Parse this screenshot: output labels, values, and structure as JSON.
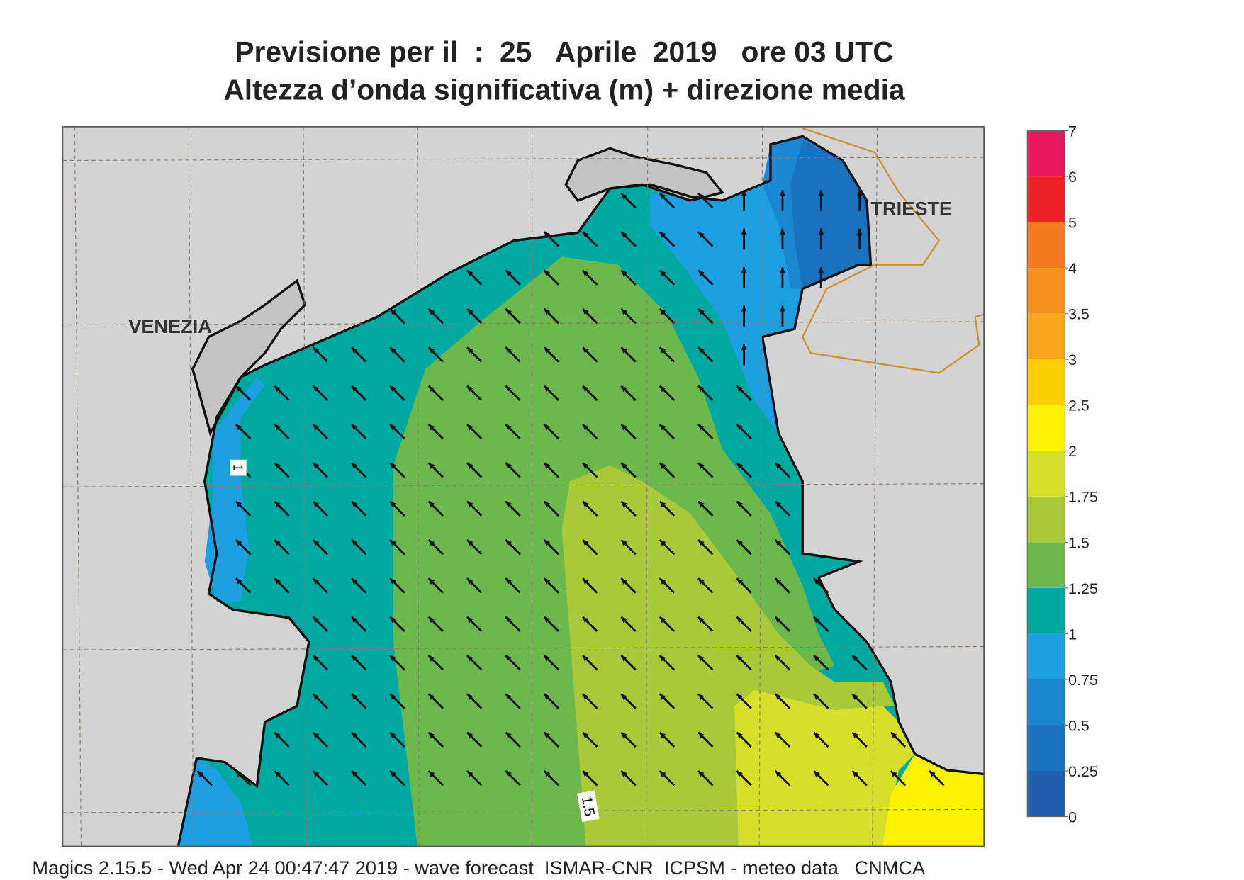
{
  "title": {
    "line1": "Previsione per il  :  25   Aprile  2019   ore 03 UTC",
    "line2": "Altezza d’onda significativa (m) + direzione media"
  },
  "map": {
    "place_labels": [
      "VENEZIA",
      "TRIESTE"
    ],
    "contour_labels": [
      "1",
      "1.5"
    ]
  },
  "colorbar": {
    "levels": [
      0,
      0.25,
      0.5,
      0.75,
      1,
      1.25,
      1.5,
      1.75,
      2,
      2.5,
      3,
      3.5,
      4,
      5,
      6,
      7
    ],
    "colors": [
      "#1f5fae",
      "#1a72be",
      "#1b86d1",
      "#1e9fe2",
      "#00a8a2",
      "#6db84c",
      "#a9c93b",
      "#d7df2b",
      "#fff200",
      "#fcd000",
      "#f9a71c",
      "#f7911e",
      "#f47a20",
      "#ec2227",
      "#e8175d"
    ]
  },
  "footer": "Magics 2.15.5 - Wed Apr 24 00:47:47 2019 - wave forecast  ISMAR-CNR  ICPSM - meteo data   CNMCA"
}
